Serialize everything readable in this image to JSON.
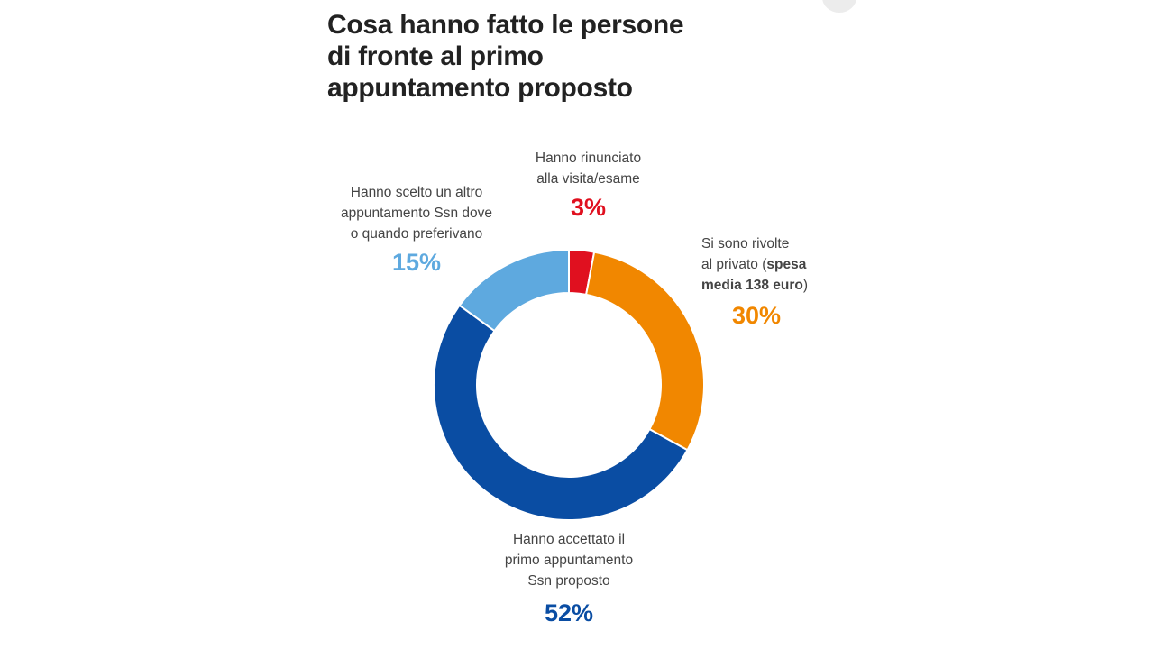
{
  "title_lines": [
    "Cosa hanno fatto le persone",
    "di fronte al primo",
    "appuntamento proposto"
  ],
  "colors": {
    "rinunciato": "#e0101f",
    "privato": "#f18700",
    "accettato": "#0a4da3",
    "altro": "#5ea9df",
    "title": "#222222",
    "label": "#444444"
  },
  "labels": {
    "rinunciato": {
      "lines": [
        "Hanno rinunciato",
        "alla visita/esame"
      ],
      "pct": "3%"
    },
    "privato": {
      "lines": [
        "Si sono rivolte",
        "al privato ("
      ],
      "bold1": "spesa",
      "bold2": "media 138 euro",
      "close": ")",
      "pct": "30%"
    },
    "accettato": {
      "lines": [
        "Hanno accettato il",
        "primo appuntamento",
        "Ssn proposto"
      ],
      "pct": "52%"
    },
    "altro": {
      "lines": [
        "Hanno scelto un altro",
        "appuntamento Ssn dove",
        "o quando preferivano"
      ],
      "pct": "15%"
    }
  },
  "chart_data": {
    "type": "pie",
    "style": "donut",
    "title": "Cosa hanno fatto le persone di fronte al primo appuntamento proposto",
    "categories": [
      "Hanno rinunciato alla visita/esame",
      "Si sono rivolte al privato (spesa media 138 euro)",
      "Hanno accettato il primo appuntamento Ssn proposto",
      "Hanno scelto un altro appuntamento Ssn dove o quando preferivano"
    ],
    "values": [
      3,
      30,
      52,
      15
    ],
    "unit": "%",
    "colors": [
      "#e0101f",
      "#f18700",
      "#0a4da3",
      "#5ea9df"
    ],
    "start": "12 o'clock, clockwise"
  }
}
